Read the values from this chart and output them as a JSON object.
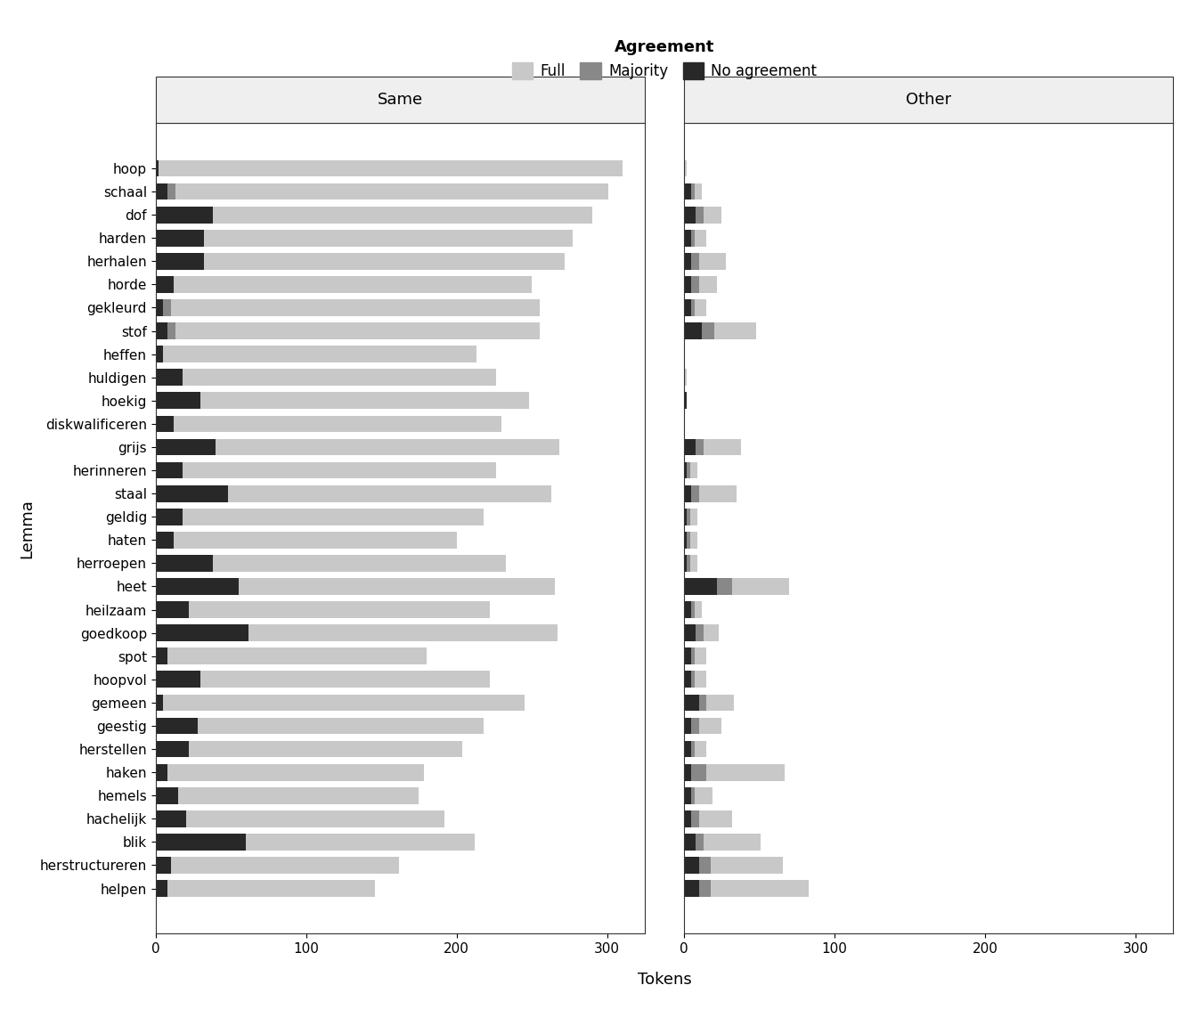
{
  "lemmas": [
    "hoop",
    "schaal",
    "dof",
    "harden",
    "herhalen",
    "horde",
    "gekleurd",
    "stof",
    "heffen",
    "huldigen",
    "hoekig",
    "diskwalificeren",
    "grijs",
    "herinneren",
    "staal",
    "geldig",
    "haten",
    "herroepen",
    "heet",
    "heilzaam",
    "goedkoop",
    "spot",
    "hoopvol",
    "gemeen",
    "geestig",
    "herstellen",
    "haken",
    "hemels",
    "hachelijk",
    "blik",
    "herstructureren",
    "helpen"
  ],
  "same": {
    "noagree": [
      2,
      8,
      38,
      32,
      32,
      12,
      5,
      8,
      5,
      18,
      30,
      12,
      40,
      18,
      48,
      18,
      12,
      38,
      55,
      22,
      62,
      8,
      30,
      5,
      28,
      22,
      8,
      15,
      20,
      60,
      10,
      8
    ],
    "majority": [
      0,
      5,
      0,
      0,
      0,
      0,
      5,
      5,
      0,
      0,
      0,
      0,
      0,
      0,
      0,
      0,
      0,
      0,
      0,
      0,
      0,
      0,
      0,
      0,
      0,
      0,
      0,
      0,
      0,
      0,
      0,
      0
    ],
    "full": [
      308,
      288,
      252,
      245,
      240,
      238,
      245,
      242,
      208,
      208,
      218,
      218,
      228,
      208,
      215,
      200,
      188,
      195,
      210,
      200,
      205,
      172,
      192,
      240,
      190,
      182,
      170,
      160,
      172,
      152,
      152,
      138
    ]
  },
  "other": {
    "noagree": [
      0,
      5,
      8,
      5,
      5,
      5,
      5,
      12,
      0,
      0,
      2,
      0,
      8,
      2,
      5,
      2,
      2,
      2,
      22,
      5,
      8,
      5,
      5,
      10,
      5,
      5,
      5,
      5,
      5,
      8,
      10,
      10
    ],
    "majority": [
      0,
      2,
      5,
      2,
      5,
      5,
      2,
      8,
      0,
      0,
      0,
      0,
      5,
      2,
      5,
      2,
      2,
      2,
      10,
      2,
      5,
      2,
      2,
      5,
      5,
      2,
      10,
      2,
      5,
      5,
      8,
      8
    ],
    "full": [
      2,
      5,
      12,
      8,
      18,
      12,
      8,
      28,
      0,
      2,
      0,
      0,
      25,
      5,
      25,
      5,
      5,
      5,
      38,
      5,
      10,
      8,
      8,
      18,
      15,
      8,
      52,
      12,
      22,
      38,
      48,
      65
    ]
  },
  "color_full": "#c8c8c8",
  "color_majority": "#888888",
  "color_noagree": "#282828",
  "panel_bg": "#efefef",
  "panel_border": "#333333",
  "xlabel": "Tokens",
  "ylabel": "Lemma",
  "title_same": "Same",
  "title_other": "Other",
  "legend_title": "Agreement"
}
